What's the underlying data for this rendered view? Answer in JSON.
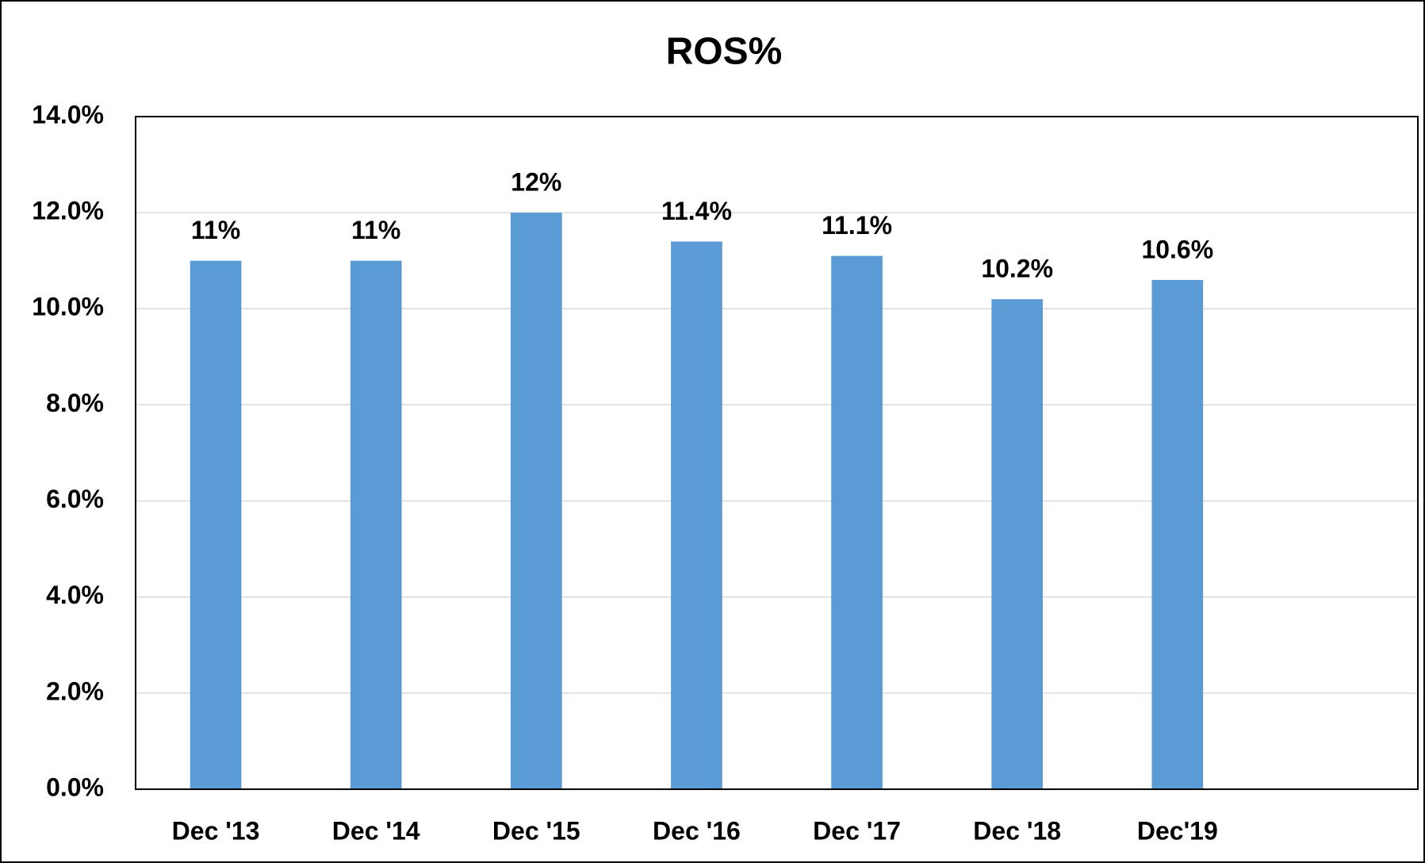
{
  "chart_data": {
    "type": "bar",
    "title": "ROS%",
    "categories": [
      "Dec '13",
      "Dec '14",
      "Dec '15",
      "Dec '16",
      "Dec '17",
      "Dec '18",
      "Dec'19",
      null
    ],
    "values": [
      11,
      11,
      12,
      11.4,
      11.1,
      10.2,
      10.6,
      null
    ],
    "value_labels": [
      "11%",
      "11%",
      "12%",
      "11.4%",
      "11.1%",
      "10.2%",
      "10.6%",
      null
    ],
    "color": "#5b9bd5",
    "ylim": [
      0,
      14
    ],
    "yticks": [
      {
        "value": 0,
        "label": "0.0%"
      },
      {
        "value": 2,
        "label": "2.0%"
      },
      {
        "value": 4,
        "label": "4.0%"
      },
      {
        "value": 6,
        "label": "6.0%"
      },
      {
        "value": 8,
        "label": "8.0%"
      },
      {
        "value": 10,
        "label": "10.0%"
      },
      {
        "value": 12,
        "label": "12.0%"
      },
      {
        "value": 14,
        "label": "14.0%"
      }
    ],
    "grid": true
  }
}
